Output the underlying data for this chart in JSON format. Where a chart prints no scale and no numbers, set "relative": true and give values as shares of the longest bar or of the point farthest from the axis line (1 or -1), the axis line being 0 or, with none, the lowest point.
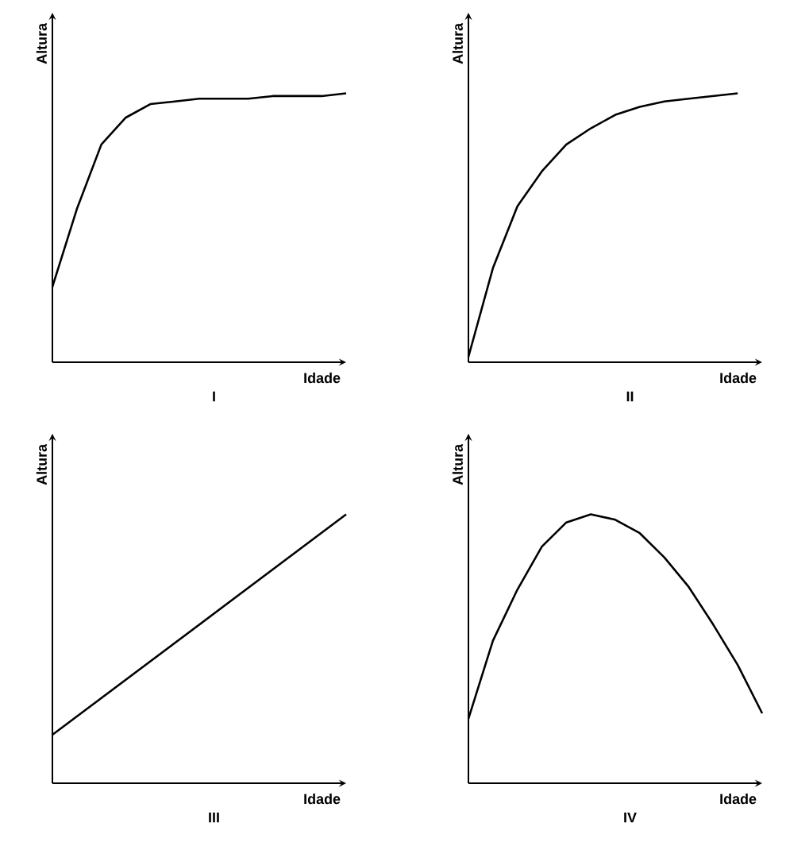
{
  "chart_data": [
    {
      "type": "line",
      "xlabel": "Idade",
      "ylabel": "Altura",
      "annotations": [
        "I"
      ],
      "relative": true,
      "color": "#000000",
      "categories": [
        null,
        null,
        null,
        null,
        null,
        null,
        null,
        null,
        null,
        null,
        null,
        null,
        null
      ],
      "values": [
        0.28,
        0.57,
        0.81,
        0.91,
        0.96,
        0.97,
        0.98,
        0.98,
        0.98,
        0.99,
        0.99,
        0.99,
        1
      ]
    },
    {
      "type": "line",
      "xlabel": "Idade",
      "ylabel": "Altura",
      "annotations": [
        "II"
      ],
      "relative": true,
      "color": "#000000",
      "categories": [
        null,
        null,
        null,
        null,
        null,
        null,
        null,
        null,
        null,
        null,
        null,
        null,
        null
      ],
      "values": [
        0.02,
        0.35,
        0.58,
        0.71,
        0.81,
        0.87,
        0.92,
        0.95,
        0.97,
        0.98,
        0.99,
        1,
        null
      ]
    },
    {
      "type": "line",
      "xlabel": "Idade",
      "ylabel": "Altura",
      "annotations": [
        "III"
      ],
      "relative": true,
      "color": "#000000",
      "categories": [
        null,
        null
      ],
      "values": [
        0.18,
        1
      ]
    },
    {
      "type": "line",
      "xlabel": "Idade",
      "ylabel": "Altura",
      "annotations": [
        "IV"
      ],
      "relative": true,
      "color": "#000000",
      "categories": [
        null,
        null,
        null,
        null,
        null,
        null,
        null,
        null,
        null,
        null,
        null,
        null,
        null
      ],
      "values": [
        0.24,
        0.53,
        0.72,
        0.88,
        0.97,
        1,
        0.98,
        0.93,
        0.84,
        0.73,
        0.59,
        0.44,
        0.26
      ]
    }
  ]
}
